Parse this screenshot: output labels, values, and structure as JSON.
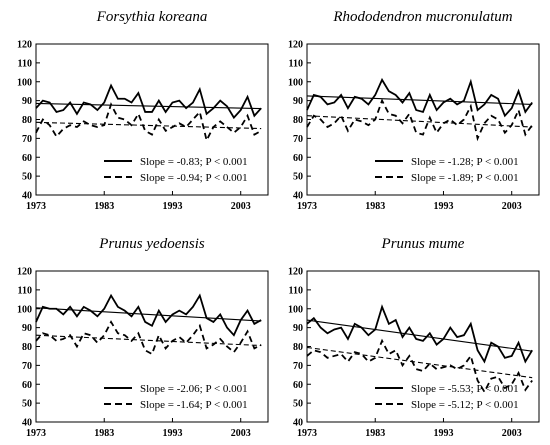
{
  "chart_data": [
    {
      "type": "line",
      "title": "Forsythia koreana",
      "xlabel": "",
      "ylabel": "",
      "xlim": [
        1973,
        2007
      ],
      "ylim": [
        40,
        120
      ],
      "x_ticks": [
        "1973",
        "1983",
        "1993",
        "2003"
      ],
      "y_ticks": [
        "40",
        "50",
        "60",
        "70",
        "80",
        "90",
        "100",
        "110",
        "120"
      ],
      "x": [
        1973,
        1974,
        1975,
        1976,
        1977,
        1978,
        1979,
        1980,
        1981,
        1982,
        1983,
        1984,
        1985,
        1986,
        1987,
        1988,
        1989,
        1990,
        1991,
        1992,
        1993,
        1994,
        1995,
        1996,
        1997,
        1998,
        1999,
        2000,
        2001,
        2002,
        2003,
        2004,
        2005,
        2006
      ],
      "series": [
        {
          "name": "Slope = -0.83; P < 0.001",
          "style": "solid",
          "values": [
            86,
            90,
            89,
            84,
            85,
            89,
            83,
            89,
            88,
            85,
            89,
            98,
            91,
            91,
            89,
            94,
            84,
            84,
            90,
            84,
            89,
            90,
            86,
            89,
            96,
            83,
            86,
            90,
            87,
            81,
            85,
            92,
            82,
            86
          ],
          "trend": [
            88.5,
            85.8
          ]
        },
        {
          "name": "Slope = -0.94; P < 0.001",
          "style": "dashed",
          "values": [
            73,
            80,
            77,
            71,
            75,
            77,
            76,
            79,
            77,
            76,
            77,
            88,
            81,
            80,
            77,
            83,
            74,
            72,
            80,
            74,
            76,
            78,
            76,
            80,
            84,
            69,
            76,
            79,
            76,
            73,
            76,
            82,
            72,
            74
          ],
          "trend": [
            78.5,
            75.2
          ]
        }
      ]
    },
    {
      "type": "line",
      "title": "Rhododendron mucronulatum",
      "xlabel": "",
      "ylabel": "",
      "xlim": [
        1973,
        2007
      ],
      "ylim": [
        40,
        120
      ],
      "x_ticks": [
        "1973",
        "1983",
        "1993",
        "2003"
      ],
      "y_ticks": [
        "40",
        "50",
        "60",
        "70",
        "80",
        "90",
        "100",
        "110",
        "120"
      ],
      "x": [
        1973,
        1974,
        1975,
        1976,
        1977,
        1978,
        1979,
        1980,
        1981,
        1982,
        1983,
        1984,
        1985,
        1986,
        1987,
        1988,
        1989,
        1990,
        1991,
        1992,
        1993,
        1994,
        1995,
        1996,
        1997,
        1998,
        1999,
        2000,
        2001,
        2002,
        2003,
        2004,
        2005,
        2006
      ],
      "series": [
        {
          "name": "Slope = -1.28; P < 0.001",
          "style": "solid",
          "values": [
            85,
            93,
            92,
            88,
            89,
            93,
            86,
            92,
            91,
            88,
            93,
            101,
            95,
            93,
            89,
            94,
            85,
            84,
            93,
            85,
            89,
            91,
            88,
            90,
            100,
            85,
            88,
            93,
            91,
            82,
            86,
            95,
            84,
            89
          ],
          "trend": [
            92.5,
            88.0
          ]
        },
        {
          "name": "Slope = -1.89; P < 0.001",
          "style": "dashed",
          "values": [
            76,
            82,
            80,
            76,
            78,
            82,
            74,
            80,
            79,
            77,
            80,
            90,
            83,
            82,
            78,
            83,
            73,
            72,
            81,
            73,
            78,
            80,
            77,
            80,
            87,
            70,
            78,
            82,
            80,
            73,
            77,
            85,
            72,
            77
          ],
          "trend": [
            82.0,
            76.0
          ]
        }
      ]
    },
    {
      "type": "line",
      "title": "Prunus yedoensis",
      "xlabel": "",
      "ylabel": "",
      "xlim": [
        1973,
        2007
      ],
      "ylim": [
        40,
        120
      ],
      "x_ticks": [
        "1973",
        "1983",
        "1993",
        "2003"
      ],
      "y_ticks": [
        "40",
        "50",
        "60",
        "70",
        "80",
        "90",
        "100",
        "110",
        "120"
      ],
      "x": [
        1973,
        1974,
        1975,
        1976,
        1977,
        1978,
        1979,
        1980,
        1981,
        1982,
        1983,
        1984,
        1985,
        1986,
        1987,
        1988,
        1989,
        1990,
        1991,
        1992,
        1993,
        1994,
        1995,
        1996,
        1997,
        1998,
        1999,
        2000,
        2001,
        2002,
        2003,
        2004,
        2005,
        2006
      ],
      "series": [
        {
          "name": "Slope = -2.06; P < 0.001",
          "style": "solid",
          "values": [
            93,
            101,
            100,
            100,
            97,
            101,
            96,
            101,
            99,
            96,
            100,
            107,
            101,
            99,
            96,
            101,
            93,
            91,
            99,
            93,
            97,
            99,
            97,
            101,
            107,
            95,
            93,
            97,
            90,
            86,
            94,
            99,
            92,
            94
          ],
          "trend": [
            100.5,
            93.5
          ]
        },
        {
          "name": "Slope = -1.64; P < 0.001",
          "style": "dashed",
          "values": [
            83,
            87,
            86,
            83,
            84,
            86,
            80,
            87,
            86,
            82,
            86,
            93,
            87,
            86,
            83,
            87,
            78,
            76,
            86,
            79,
            83,
            85,
            82,
            86,
            91,
            79,
            81,
            84,
            80,
            77,
            82,
            88,
            79,
            81
          ],
          "trend": [
            86.0,
            80.5
          ]
        }
      ]
    },
    {
      "type": "line",
      "title": "Prunus mume",
      "xlabel": "",
      "ylabel": "",
      "xlim": [
        1973,
        2007
      ],
      "ylim": [
        40,
        120
      ],
      "x_ticks": [
        "1973",
        "1983",
        "1993",
        "2003"
      ],
      "y_ticks": [
        "40",
        "50",
        "60",
        "70",
        "80",
        "90",
        "100",
        "110",
        "120"
      ],
      "x": [
        1973,
        1974,
        1975,
        1976,
        1977,
        1978,
        1979,
        1980,
        1981,
        1982,
        1983,
        1984,
        1985,
        1986,
        1987,
        1988,
        1989,
        1990,
        1991,
        1992,
        1993,
        1994,
        1995,
        1996,
        1997,
        1998,
        1999,
        2000,
        2001,
        2002,
        2003,
        2004,
        2005,
        2006
      ],
      "series": [
        {
          "name": "Slope = -5.53; P < 0.001",
          "style": "solid",
          "values": [
            92,
            95,
            90,
            87,
            89,
            90,
            84,
            92,
            90,
            86,
            89,
            101,
            92,
            94,
            85,
            90,
            84,
            83,
            87,
            81,
            84,
            90,
            85,
            86,
            92,
            78,
            72,
            82,
            80,
            74,
            75,
            82,
            72,
            78
          ],
          "trend": [
            94.0,
            77.5
          ]
        },
        {
          "name": "Slope = -5.12; P < 0.001",
          "style": "dashed",
          "values": [
            75,
            78,
            77,
            74,
            75,
            76,
            72,
            77,
            76,
            72,
            74,
            83,
            76,
            78,
            70,
            75,
            68,
            67,
            71,
            68,
            69,
            70,
            68,
            70,
            75,
            62,
            56,
            63,
            64,
            58,
            60,
            66,
            57,
            62
          ],
          "trend": [
            79.5,
            63.5
          ]
        }
      ]
    }
  ]
}
